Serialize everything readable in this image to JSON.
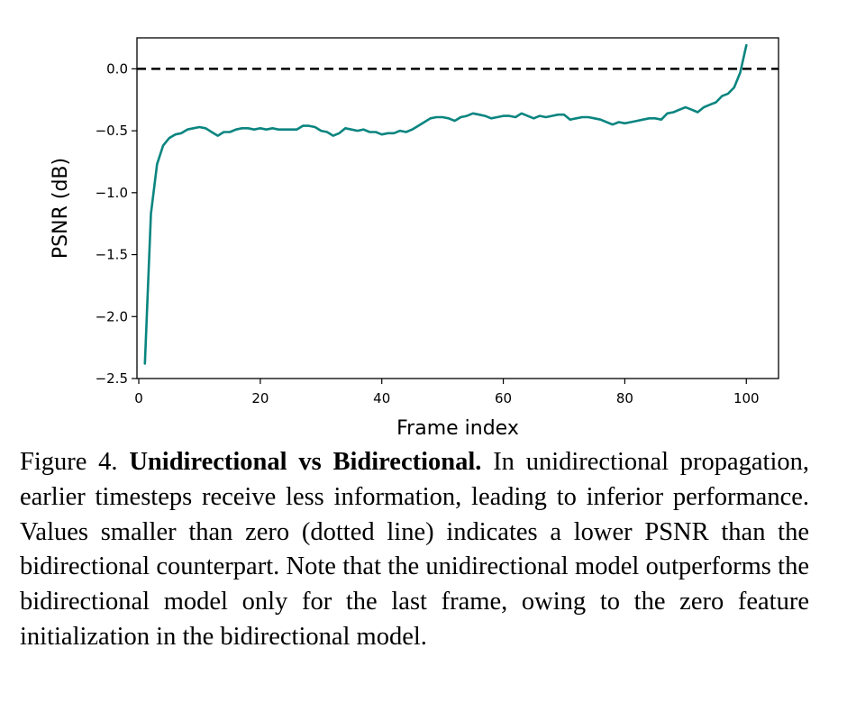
{
  "caption": {
    "label": "Figure 4.",
    "title": "Unidirectional vs Bidirectional.",
    "body": "In unidirectional propagation, earlier timesteps receive less information, leading to inferior performance. Values smaller than zero (dotted line) indicates a lower PSNR than the bidirectional counterpart. Note that the unidirectional model outperforms the bidirectional model only for the last frame, owing to the zero feature initialization in the bidirectional model."
  },
  "chart_data": {
    "type": "line",
    "title": "",
    "xlabel": "Frame index",
    "ylabel": "PSNR (dB)",
    "xlim": [
      -0.3,
      105.3
    ],
    "ylim": [
      -2.5,
      0.25
    ],
    "x_ticks": [
      0,
      20,
      40,
      60,
      80,
      100
    ],
    "y_ticks": [
      0.0,
      -0.5,
      -1.0,
      -1.5,
      -2.0,
      -2.5
    ],
    "x_tick_labels": [
      "0",
      "20",
      "40",
      "60",
      "80",
      "100"
    ],
    "y_tick_labels": [
      "0.0",
      "−0.5",
      "−1.0",
      "−1.5",
      "−2.0",
      "−2.5"
    ],
    "grid": false,
    "reference_line": {
      "y": 0.0,
      "style": "dashed",
      "color": "#000000"
    },
    "series": [
      {
        "color": "#0a8580",
        "x": [
          1,
          2,
          3,
          4,
          5,
          6,
          7,
          8,
          9,
          10,
          11,
          12,
          13,
          14,
          15,
          16,
          17,
          18,
          19,
          20,
          21,
          22,
          23,
          24,
          25,
          26,
          27,
          28,
          29,
          30,
          31,
          32,
          33,
          34,
          35,
          36,
          37,
          38,
          39,
          40,
          41,
          42,
          43,
          44,
          45,
          46,
          47,
          48,
          49,
          50,
          51,
          52,
          53,
          54,
          55,
          56,
          57,
          58,
          59,
          60,
          61,
          62,
          63,
          64,
          65,
          66,
          67,
          68,
          69,
          70,
          71,
          72,
          73,
          74,
          75,
          76,
          77,
          78,
          79,
          80,
          81,
          82,
          83,
          84,
          85,
          86,
          87,
          88,
          89,
          90,
          91,
          92,
          93,
          94,
          95,
          96,
          97,
          98,
          99,
          100
        ],
        "y": [
          -2.38,
          -1.17,
          -0.77,
          -0.62,
          -0.56,
          -0.53,
          -0.52,
          -0.49,
          -0.48,
          -0.47,
          -0.48,
          -0.51,
          -0.54,
          -0.51,
          -0.51,
          -0.49,
          -0.48,
          -0.48,
          -0.49,
          -0.48,
          -0.49,
          -0.48,
          -0.49,
          -0.49,
          -0.49,
          -0.49,
          -0.46,
          -0.46,
          -0.47,
          -0.5,
          -0.51,
          -0.54,
          -0.52,
          -0.48,
          -0.49,
          -0.5,
          -0.49,
          -0.51,
          -0.51,
          -0.53,
          -0.52,
          -0.52,
          -0.5,
          -0.51,
          -0.49,
          -0.46,
          -0.43,
          -0.4,
          -0.39,
          -0.39,
          -0.4,
          -0.42,
          -0.39,
          -0.38,
          -0.36,
          -0.37,
          -0.38,
          -0.4,
          -0.39,
          -0.38,
          -0.38,
          -0.39,
          -0.36,
          -0.38,
          -0.4,
          -0.38,
          -0.39,
          -0.38,
          -0.37,
          -0.37,
          -0.41,
          -0.4,
          -0.39,
          -0.39,
          -0.4,
          -0.41,
          -0.43,
          -0.45,
          -0.43,
          -0.44,
          -0.43,
          -0.42,
          -0.41,
          -0.4,
          -0.4,
          -0.41,
          -0.36,
          -0.35,
          -0.33,
          -0.31,
          -0.33,
          -0.35,
          -0.31,
          -0.29,
          -0.27,
          -0.22,
          -0.2,
          -0.15,
          -0.03,
          0.19
        ]
      }
    ]
  }
}
